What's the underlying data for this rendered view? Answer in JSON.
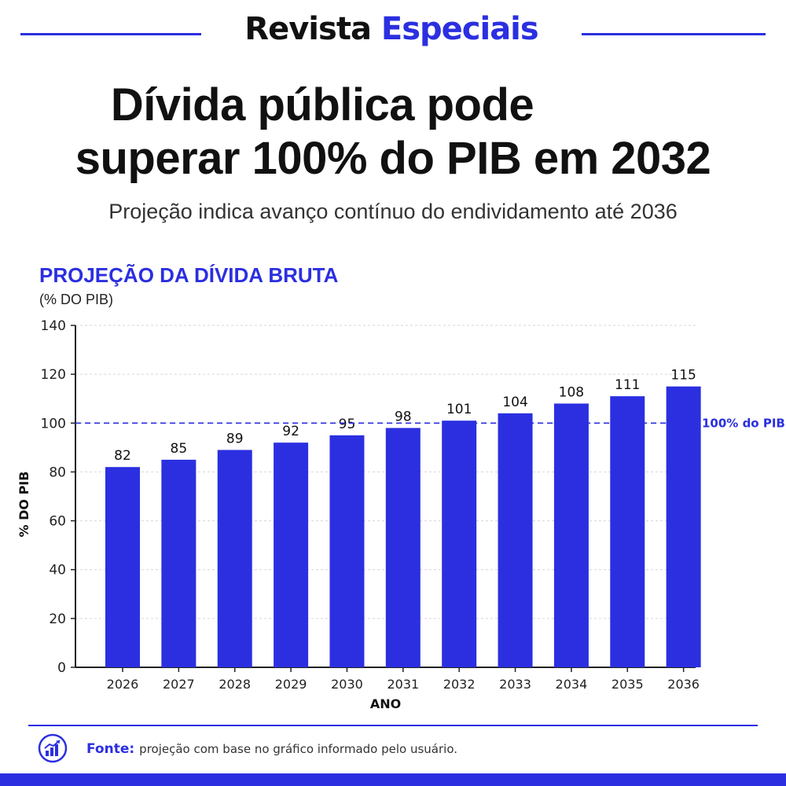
{
  "brand": {
    "part1": "Revista",
    "part2": "Especiais"
  },
  "headline": {
    "line1": "Dívida pública pode",
    "line2": "superar 100% do PIB em 2032"
  },
  "subheadline": "Projeção indica avanço contínuo do endividamento até 2036",
  "footer": {
    "label": "Fonte:",
    "text": "projeção com base no gráfico informado pelo usuário.",
    "icon": "chart-growth-icon"
  },
  "colors": {
    "accent": "#2b2fe0",
    "bar": "#2b2fe0",
    "text": "#111111"
  },
  "chart_data": {
    "type": "bar",
    "title": "PROJEÇÃO DA DÍVIDA BRUTA",
    "subtitle": "(% DO PIB)",
    "xlabel": "ANO",
    "ylabel": "% DO PIB",
    "categories": [
      "2026",
      "2027",
      "2028",
      "2029",
      "2030",
      "2031",
      "2032",
      "2033",
      "2034",
      "2035",
      "2036"
    ],
    "values": [
      82,
      85,
      89,
      92,
      95,
      98,
      101,
      104,
      108,
      111,
      115
    ],
    "ylim": [
      0,
      140
    ],
    "yticks": [
      0,
      20,
      40,
      60,
      80,
      100,
      120,
      140
    ],
    "grid": true,
    "reference_line": {
      "value": 100,
      "label": "100% do PIB"
    }
  }
}
